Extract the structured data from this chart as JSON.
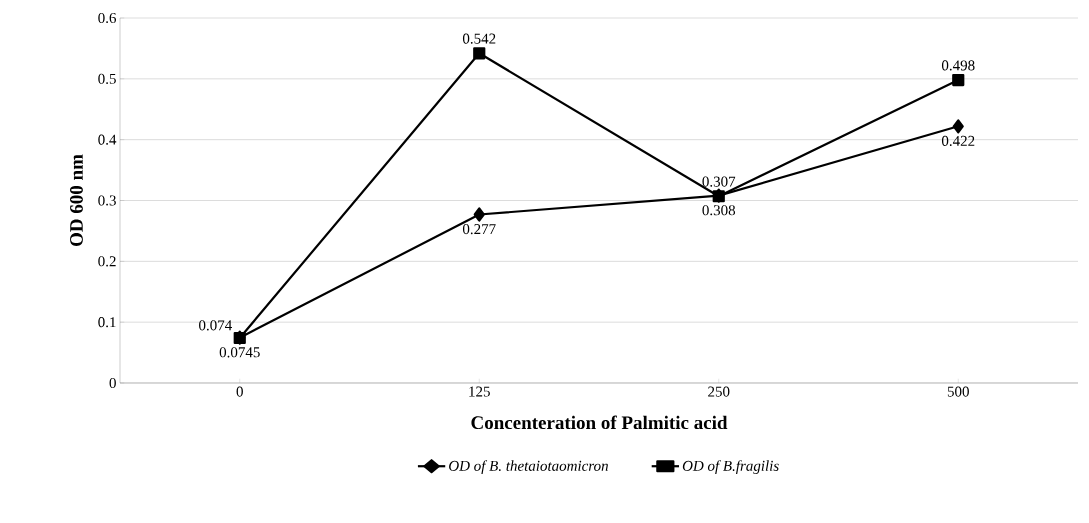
{
  "chart_data": {
    "type": "line",
    "xlabel": "Concenteration of Palmitic acid",
    "ylabel": "OD 600 nm",
    "categories": [
      "0",
      "125",
      "250",
      "500"
    ],
    "series": [
      {
        "name": "OD of B.  thetaiotaomicron",
        "color": "#000000",
        "marker": "diamond",
        "values": [
          0.0745,
          0.277,
          0.308,
          0.422
        ]
      },
      {
        "name": "OD of B.fragilis",
        "color": "#000000",
        "marker": "square",
        "values": [
          0.074,
          0.542,
          0.307,
          0.498
        ]
      }
    ],
    "ylim": [
      0,
      0.6
    ],
    "yticks": [
      0,
      0.1,
      0.2,
      0.3,
      0.4,
      0.5,
      0.6
    ],
    "grid": "y",
    "legend": "bottom",
    "data_labels": true,
    "line_style": "solid"
  }
}
